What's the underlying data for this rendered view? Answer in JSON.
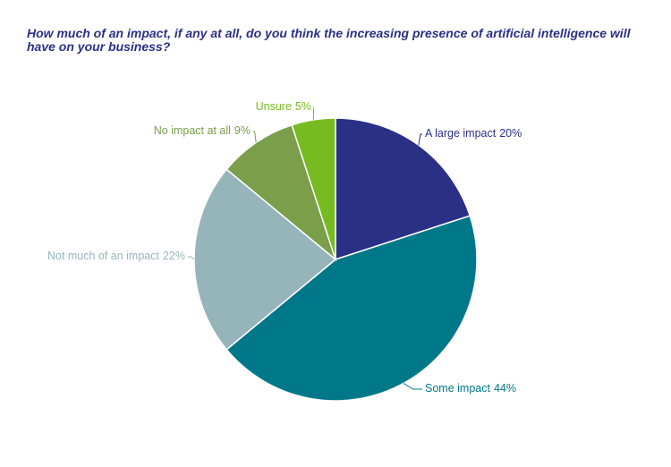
{
  "chart_data": {
    "type": "pie",
    "title": "How much of an impact, if any at all, do you think the increasing presence of artificial intelligence will have on your business?",
    "categories": [
      "A large impact",
      "Some impact",
      "Not much of an impact",
      "No impact at all",
      "Unsure"
    ],
    "values": [
      20,
      44,
      22,
      9,
      5
    ],
    "value_labels": [
      "20%",
      "44%",
      "22%",
      "9%",
      "5%"
    ],
    "colors": [
      "#2b3087",
      "#00788a",
      "#96b5ba",
      "#7a9e4a",
      "#76bc21"
    ]
  }
}
